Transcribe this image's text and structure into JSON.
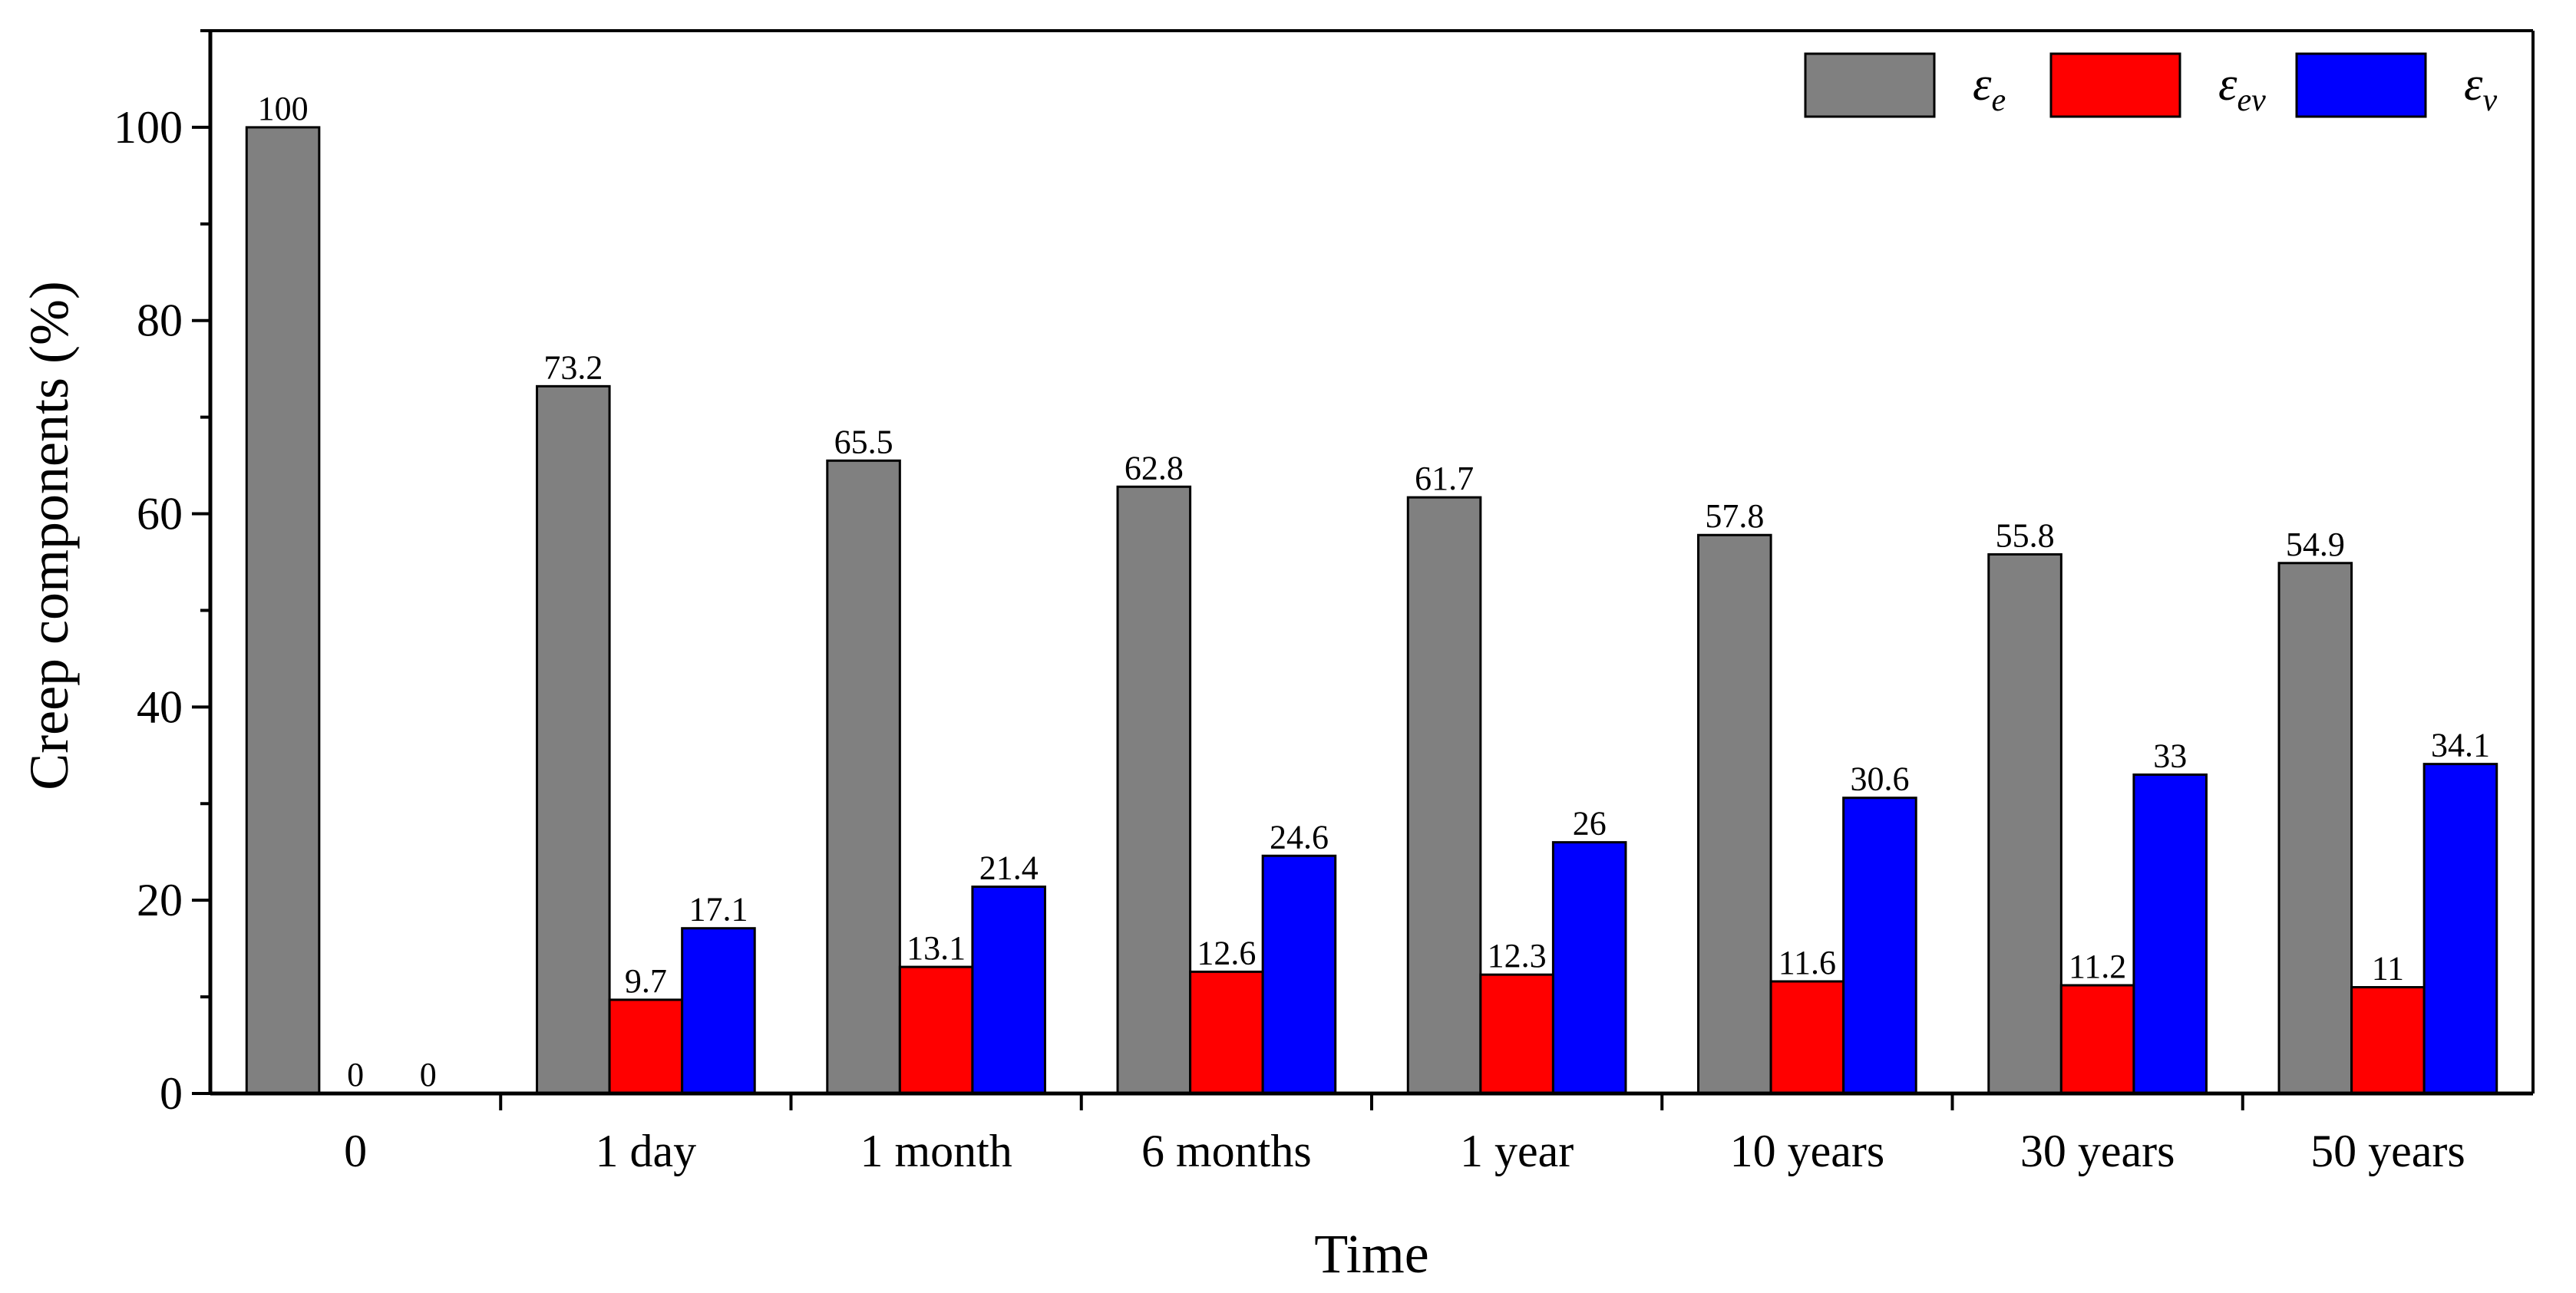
{
  "chart_data": {
    "type": "bar",
    "xlabel": "Time",
    "ylabel": "Creep components (%)",
    "ylim": [
      0,
      110
    ],
    "yticks": [
      0,
      20,
      40,
      60,
      80,
      100
    ],
    "grid": false,
    "legend_position": "top-right",
    "categories": [
      "0",
      "1 day",
      "1 month",
      "6 months",
      "1 year",
      "10 years",
      "30 years",
      "50 years"
    ],
    "series": [
      {
        "legend": {
          "base": "ε",
          "sub": "e"
        },
        "color": "#808080",
        "values": [
          100,
          73.2,
          65.5,
          62.8,
          61.7,
          57.8,
          55.8,
          54.9
        ],
        "labels": [
          "100",
          "73.2",
          "65.5",
          "62.8",
          "61.7",
          "57.8",
          "55.8",
          "54.9"
        ]
      },
      {
        "legend": {
          "base": "ε",
          "sub": "ev"
        },
        "color": "#ff0000",
        "values": [
          0,
          9.7,
          13.1,
          12.6,
          12.3,
          11.6,
          11.2,
          11
        ],
        "labels": [
          "0",
          "9.7",
          "13.1",
          "12.6",
          "12.3",
          "11.6",
          "11.2",
          "11"
        ]
      },
      {
        "legend": {
          "base": "ε",
          "sub": "v"
        },
        "color": "#0000ff",
        "values": [
          0,
          17.1,
          21.4,
          24.6,
          26,
          30.6,
          33,
          34.1
        ],
        "labels": [
          "0",
          "17.1",
          "21.4",
          "24.6",
          "26",
          "30.6",
          "33",
          "34.1"
        ]
      }
    ]
  }
}
